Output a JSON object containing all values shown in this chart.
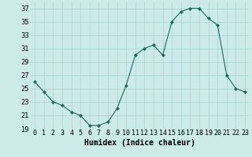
{
  "x": [
    0,
    1,
    2,
    3,
    4,
    5,
    6,
    7,
    8,
    9,
    10,
    11,
    12,
    13,
    14,
    15,
    16,
    17,
    18,
    19,
    20,
    21,
    22,
    23
  ],
  "y": [
    26,
    24.5,
    23,
    22.5,
    21.5,
    21,
    19.5,
    19.5,
    20,
    22,
    25.5,
    30,
    31,
    31.5,
    30,
    35,
    36.5,
    37,
    37,
    35.5,
    34.5,
    27,
    25,
    24.5
  ],
  "line_color": "#1a6b5a",
  "marker": "D",
  "marker_size": 2,
  "bg_color": "#cceae8",
  "grid_color": "#aad4d2",
  "xlabel": "Humidex (Indice chaleur)",
  "xlim": [
    -0.5,
    23.5
  ],
  "ylim": [
    19,
    38
  ],
  "yticks": [
    19,
    21,
    23,
    25,
    27,
    29,
    31,
    33,
    35,
    37
  ],
  "xtick_labels": [
    "0",
    "1",
    "2",
    "3",
    "4",
    "5",
    "6",
    "7",
    "8",
    "9",
    "10",
    "11",
    "12",
    "13",
    "14",
    "15",
    "16",
    "17",
    "18",
    "19",
    "20",
    "21",
    "22",
    "23"
  ],
  "xlabel_fontsize": 7,
  "tick_fontsize": 6
}
